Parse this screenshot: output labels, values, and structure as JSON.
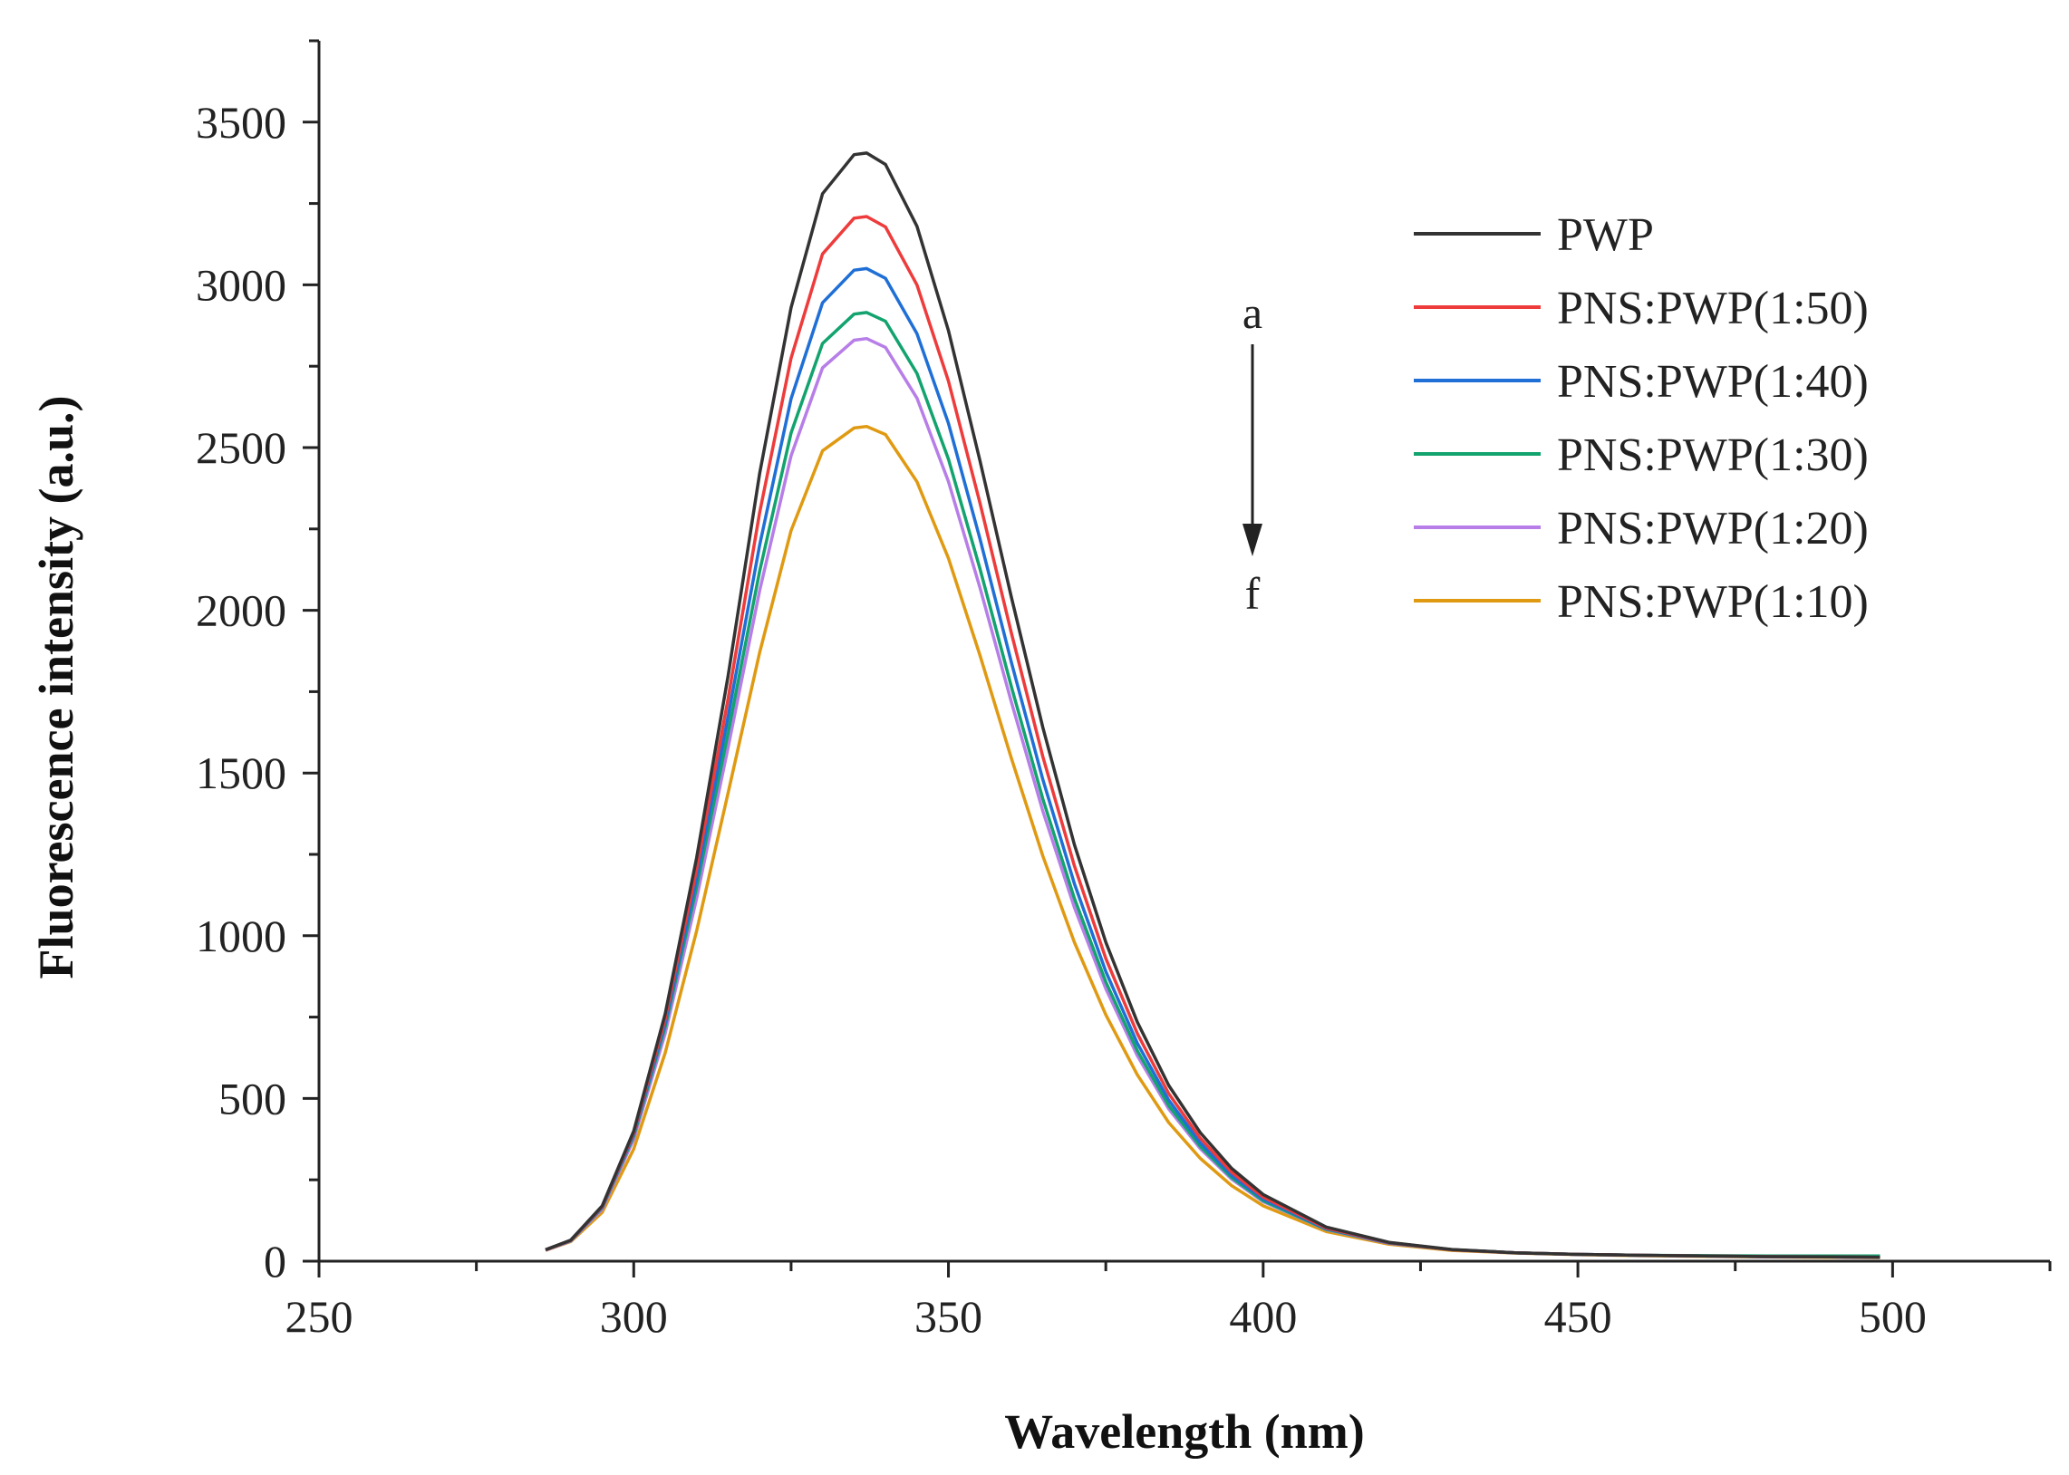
{
  "chart_data": {
    "type": "line",
    "title": "",
    "xlabel": "Wavelength (nm)",
    "ylabel": "Fluorescence intensity (a.u.)",
    "xlim": [
      250,
      525
    ],
    "ylim": [
      0,
      3750
    ],
    "xticks": [
      250,
      300,
      350,
      400,
      450,
      500
    ],
    "yticks": [
      0,
      500,
      1000,
      1500,
      2000,
      2500,
      3000,
      3500
    ],
    "grid": false,
    "legend_position": "top-right",
    "annotation": {
      "start_label": "a",
      "end_label": "f",
      "direction": "down"
    },
    "series": [
      {
        "name": "PWP",
        "color": "#333333",
        "peak_x": 337,
        "peak_y": 3405,
        "x": [
          286,
          290,
          295,
          300,
          305,
          310,
          315,
          320,
          325,
          330,
          335,
          337,
          340,
          345,
          350,
          355,
          360,
          365,
          370,
          375,
          380,
          385,
          390,
          395,
          400,
          410,
          420,
          430,
          440,
          450,
          460,
          470,
          480,
          490,
          498
        ],
        "y": [
          35,
          65,
          170,
          400,
          760,
          1240,
          1800,
          2420,
          2930,
          3280,
          3400,
          3405,
          3370,
          3180,
          2860,
          2460,
          2040,
          1640,
          1280,
          980,
          735,
          540,
          395,
          285,
          205,
          105,
          58,
          36,
          26,
          21,
          18,
          16,
          14,
          13,
          12
        ]
      },
      {
        "name": "PNS:PWP(1:50)",
        "color": "#ee3b3b",
        "peak_x": 337,
        "peak_y": 3210,
        "x": [
          286,
          290,
          295,
          300,
          305,
          310,
          315,
          320,
          325,
          330,
          335,
          337,
          340,
          345,
          350,
          355,
          360,
          365,
          370,
          375,
          380,
          385,
          390,
          395,
          400,
          410,
          420,
          430,
          440,
          450,
          460,
          470,
          480,
          490,
          498
        ],
        "y": [
          35,
          64,
          168,
          395,
          745,
          1205,
          1730,
          2300,
          2775,
          3095,
          3205,
          3210,
          3178,
          3000,
          2705,
          2330,
          1930,
          1550,
          1215,
          930,
          700,
          515,
          378,
          273,
          197,
          102,
          57,
          35,
          26,
          21,
          18,
          16,
          14,
          13,
          12
        ]
      },
      {
        "name": "PNS:PWP(1:40)",
        "color": "#1f6fd6",
        "peak_x": 337,
        "peak_y": 3050,
        "x": [
          286,
          290,
          295,
          300,
          305,
          310,
          315,
          320,
          325,
          330,
          335,
          337,
          340,
          345,
          350,
          355,
          360,
          365,
          370,
          375,
          380,
          385,
          390,
          395,
          400,
          410,
          420,
          430,
          440,
          450,
          460,
          470,
          480,
          490,
          498
        ],
        "y": [
          35,
          63,
          166,
          390,
          732,
          1175,
          1675,
          2200,
          2650,
          2945,
          3045,
          3050,
          3020,
          2850,
          2575,
          2220,
          1840,
          1480,
          1160,
          890,
          670,
          495,
          364,
          264,
          191,
          100,
          56,
          35,
          26,
          21,
          18,
          16,
          14,
          13,
          12
        ]
      },
      {
        "name": "PNS:PWP(1:30)",
        "color": "#12a36e",
        "peak_x": 337,
        "peak_y": 2915,
        "x": [
          286,
          290,
          295,
          300,
          305,
          310,
          315,
          320,
          325,
          330,
          335,
          337,
          340,
          345,
          350,
          355,
          360,
          365,
          370,
          375,
          380,
          385,
          390,
          395,
          400,
          410,
          420,
          430,
          440,
          450,
          460,
          470,
          480,
          490,
          498
        ],
        "y": [
          35,
          63,
          164,
          385,
          720,
          1150,
          1625,
          2120,
          2545,
          2820,
          2910,
          2915,
          2888,
          2728,
          2465,
          2128,
          1765,
          1420,
          1115,
          858,
          647,
          478,
          353,
          257,
          186,
          98,
          56,
          35,
          26,
          21,
          18,
          17,
          16,
          16,
          16
        ]
      },
      {
        "name": "PNS:PWP(1:20)",
        "color": "#b77ee8",
        "peak_x": 337,
        "peak_y": 2835,
        "x": [
          286,
          290,
          295,
          300,
          305,
          310,
          315,
          320,
          325,
          330,
          335,
          337,
          340,
          345,
          350,
          355,
          360,
          365,
          370,
          375,
          380,
          385,
          390,
          395,
          400,
          410,
          420,
          430,
          440,
          450,
          460,
          470,
          480,
          490,
          498
        ],
        "y": [
          34,
          62,
          160,
          375,
          700,
          1115,
          1580,
          2060,
          2475,
          2745,
          2830,
          2835,
          2808,
          2652,
          2396,
          2070,
          1718,
          1383,
          1087,
          837,
          632,
          468,
          346,
          252,
          183,
          97,
          55,
          35,
          26,
          21,
          18,
          16,
          14,
          13,
          12
        ]
      },
      {
        "name": "PNS:PWP(1:10)",
        "color": "#e09a12",
        "peak_x": 337,
        "peak_y": 2565,
        "x": [
          286,
          290,
          295,
          300,
          305,
          310,
          315,
          320,
          325,
          330,
          335,
          337,
          340,
          345,
          350,
          355,
          360,
          365,
          370,
          375,
          380,
          385,
          390,
          395,
          400,
          410,
          420,
          430,
          440,
          450,
          460,
          470,
          480,
          490,
          498
        ],
        "y": [
          33,
          60,
          150,
          345,
          640,
          1015,
          1440,
          1870,
          2245,
          2490,
          2560,
          2565,
          2540,
          2395,
          2160,
          1862,
          1545,
          1245,
          980,
          757,
          573,
          426,
          316,
          232,
          170,
          91,
          52,
          33,
          25,
          20,
          17,
          15,
          13,
          12,
          11
        ]
      }
    ]
  }
}
